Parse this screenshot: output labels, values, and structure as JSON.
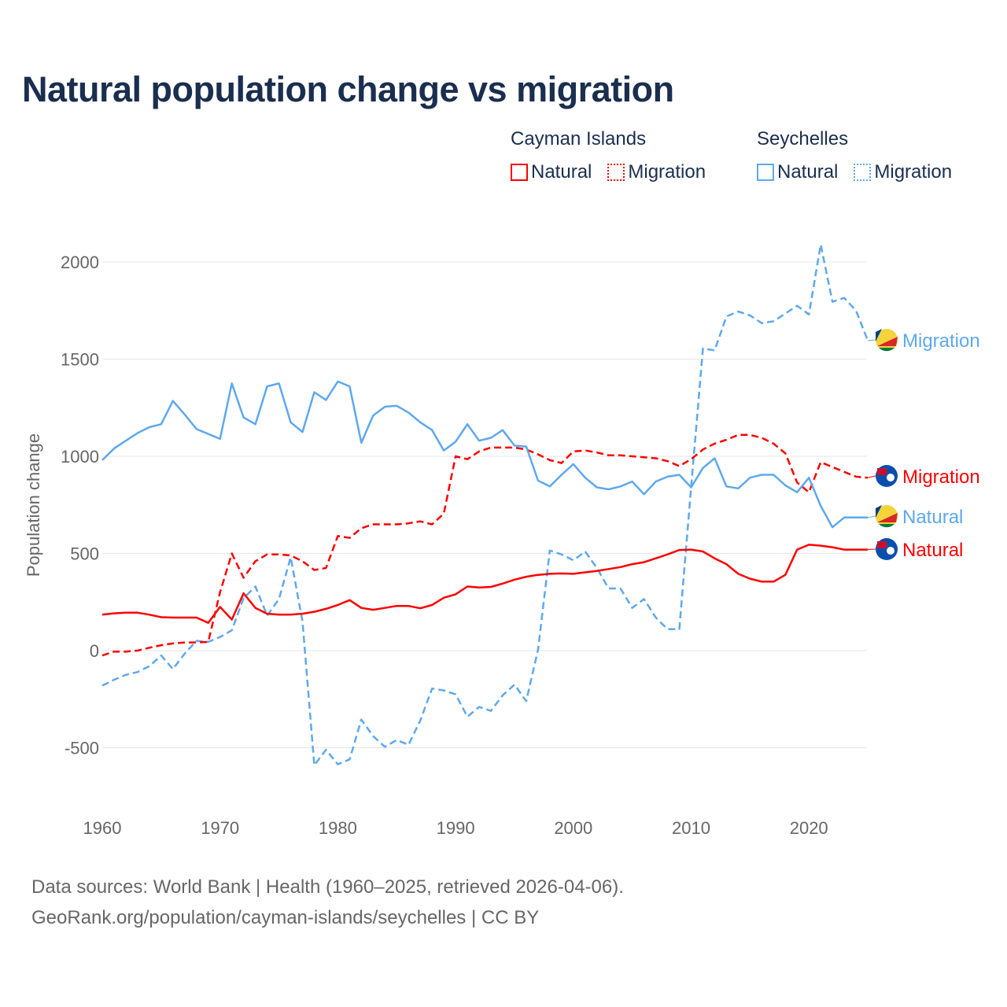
{
  "title": "Natural population change vs migration",
  "legend": [
    {
      "group": "Cayman Islands",
      "items": [
        {
          "label": "Natural",
          "style": "solid",
          "color": "#ff0000"
        },
        {
          "label": "Migration",
          "style": "dotted",
          "color": "#ff0000"
        }
      ]
    },
    {
      "group": "Seychelles",
      "items": [
        {
          "label": "Natural",
          "style": "solid",
          "color": "#5ea8ef"
        },
        {
          "label": "Migration",
          "style": "dotted",
          "color": "#5ea8ef"
        }
      ]
    }
  ],
  "footer": {
    "line1": "Data sources: World Bank | Health (1960–2025, retrieved 2026-04-06).",
    "line2": "GeoRank.org/population/cayman-islands/seychelles | CC BY"
  },
  "chart_data": {
    "type": "line",
    "title": "Natural population change vs migration",
    "xlabel": "",
    "ylabel": "Population change",
    "xlim": [
      1960,
      2025
    ],
    "ylim": [
      -700,
      2100
    ],
    "xticks": [
      1960,
      1970,
      1980,
      1990,
      2000,
      2010,
      2020
    ],
    "yticks": [
      -500,
      0,
      500,
      1000,
      1500,
      2000
    ],
    "grid": true,
    "x_start": 1960,
    "series": [
      {
        "name": "Cayman Islands Natural",
        "end_label": "Natural",
        "country": "Cayman Islands",
        "color": "#ff0000",
        "dashed": false,
        "values": [
          185,
          192,
          195,
          195,
          185,
          172,
          170,
          170,
          170,
          143,
          225,
          160,
          295,
          220,
          190,
          185,
          185,
          190,
          200,
          215,
          235,
          260,
          220,
          210,
          220,
          230,
          230,
          218,
          235,
          272,
          290,
          330,
          325,
          328,
          345,
          365,
          380,
          390,
          395,
          397,
          395,
          403,
          410,
          420,
          430,
          445,
          455,
          475,
          495,
          518,
          520,
          510,
          475,
          445,
          395,
          370,
          355,
          355,
          390,
          520,
          545,
          540,
          532,
          520,
          520,
          520
        ]
      },
      {
        "name": "Cayman Islands Migration",
        "end_label": "Migration",
        "country": "Cayman Islands",
        "color": "#ff0000",
        "dashed": true,
        "values": [
          -25,
          -5,
          -5,
          0,
          15,
          28,
          37,
          42,
          42,
          45,
          300,
          500,
          375,
          460,
          495,
          495,
          490,
          460,
          415,
          425,
          590,
          580,
          630,
          650,
          650,
          650,
          655,
          665,
          650,
          705,
          1000,
          985,
          1025,
          1045,
          1045,
          1045,
          1035,
          1010,
          980,
          965,
          1025,
          1030,
          1020,
          1005,
          1005,
          1000,
          995,
          990,
          975,
          950,
          985,
          1035,
          1065,
          1085,
          1110,
          1110,
          1095,
          1065,
          1015,
          865,
          815,
          970,
          945,
          920,
          895,
          890
        ]
      },
      {
        "name": "Seychelles Natural",
        "end_label": "Natural",
        "country": "Seychelles",
        "color": "#5ea8ef",
        "dashed": false,
        "values": [
          980,
          1040,
          1080,
          1120,
          1150,
          1165,
          1285,
          1215,
          1140,
          1115,
          1090,
          1375,
          1200,
          1165,
          1360,
          1375,
          1175,
          1125,
          1330,
          1290,
          1385,
          1360,
          1070,
          1210,
          1255,
          1260,
          1225,
          1175,
          1135,
          1030,
          1075,
          1165,
          1080,
          1095,
          1135,
          1055,
          1050,
          875,
          845,
          905,
          960,
          890,
          840,
          830,
          845,
          870,
          805,
          870,
          895,
          905,
          840,
          940,
          990,
          845,
          835,
          890,
          905,
          905,
          850,
          815,
          890,
          745,
          635,
          685,
          685,
          685
        ]
      },
      {
        "name": "Seychelles Migration",
        "end_label": "Migration",
        "country": "Seychelles",
        "color": "#5ea8ef",
        "dashed": true,
        "values": [
          -180,
          -150,
          -125,
          -110,
          -80,
          -25,
          -95,
          -15,
          50,
          45,
          70,
          105,
          270,
          330,
          180,
          265,
          480,
          150,
          -590,
          -510,
          -585,
          -560,
          -355,
          -440,
          -495,
          -460,
          -485,
          -360,
          -195,
          -205,
          -225,
          -340,
          -290,
          -310,
          -230,
          -175,
          -260,
          5,
          515,
          495,
          465,
          510,
          425,
          320,
          320,
          220,
          265,
          170,
          110,
          110,
          840,
          1555,
          1545,
          1720,
          1745,
          1725,
          1685,
          1695,
          1735,
          1775,
          1730,
          2090,
          1795,
          1815,
          1750,
          1595
        ]
      }
    ]
  }
}
